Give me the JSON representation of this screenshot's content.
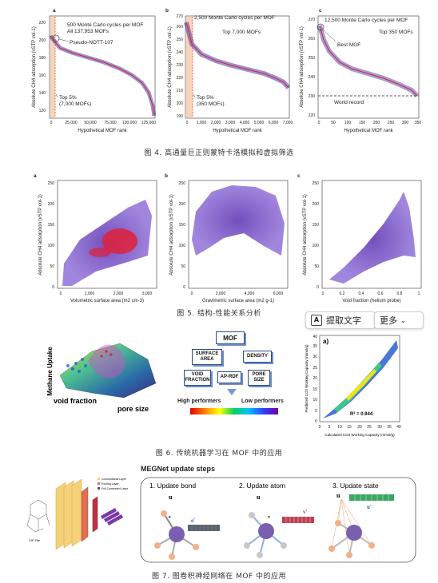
{
  "fig4": {
    "caption": "图 4. 高通量巨正则蒙特卡洛模拟和虚拟筛选",
    "panels": [
      {
        "letter": "a",
        "note_line1": "500 Monte Carlo cycles per MOF",
        "note_line2": "All 137,953 MOFs",
        "callout": "Pseudo-NOTT-107",
        "top_label_line1": "Top 5%",
        "top_label_line2": "(7,000 MOFs)",
        "xlabel": "Hypothetical MOF rank",
        "xticks": [
          "0",
          "25,000",
          "50,000",
          "75,000",
          "100,000",
          "125,000"
        ],
        "yticks": [
          "120",
          "140",
          "160",
          "180",
          "200",
          "220"
        ]
      },
      {
        "letter": "b",
        "note_line1": "2,500 Monte Carlo cycles per MOF",
        "note_line2": "Top 7,000 MOFs",
        "top_label_line1": "Top 5%",
        "top_label_line2": "(350 MOFs)",
        "xlabel": "Hypothetical MOF rank",
        "xticks": [
          "0",
          "1,000",
          "2,000",
          "3,000",
          "4,000",
          "5,000",
          "6,000",
          "7,000"
        ],
        "yticks": [
          "190",
          "200",
          "210",
          "220",
          "230",
          "240",
          "250",
          "260",
          "270"
        ]
      },
      {
        "letter": "c",
        "note_line1": "12,500 Monte Carlo cycles per MOF",
        "note_line2": "Top 350 MOFs",
        "callout": "Best MOF",
        "record_label": "World record",
        "xlabel": "Hypothetical MOF rank",
        "xticks": [
          "0",
          "50",
          "100",
          "150",
          "200",
          "250",
          "300",
          "350"
        ],
        "yticks": [
          "220",
          "230",
          "240",
          "250",
          "260",
          "270"
        ]
      }
    ],
    "ylabel": "Absolute CH4 adsorption (vSTP vol-1)"
  },
  "fig5": {
    "caption": "图 5. 结构-性能关系分析",
    "panels": [
      {
        "letter": "a",
        "xlabel": "Volumetric surface area (m2 cm-3)",
        "xticks": [
          "0",
          "1,000",
          "2,000",
          "3,000"
        ],
        "yticks": [
          "0",
          "50",
          "100",
          "150",
          "200",
          "250"
        ]
      },
      {
        "letter": "b",
        "xlabel": "Gravimetric surface area (m2 g-1)",
        "xticks": [
          "0",
          "2,000",
          "4,000",
          "6,000"
        ],
        "yticks": [
          "0",
          "50",
          "100",
          "150",
          "200",
          "250"
        ]
      },
      {
        "letter": "c",
        "xlabel": "Void fraction (helium probe)",
        "xticks": [
          "0",
          "0.2",
          "0.4",
          "0.6",
          "0.8",
          "1"
        ],
        "yticks": [
          "0",
          "50",
          "100",
          "150",
          "200",
          "250"
        ]
      }
    ],
    "ylabel": "Absolute CH4 adsorption (vSTP vol-1)"
  },
  "toolbar": {
    "extract_text": "提取文字",
    "more": "更多"
  },
  "fig6": {
    "caption": "图 6. 传统机器学习在 MOF 中的应用",
    "surface": {
      "zlabel": "Methane Uptake",
      "xlabel": "void fraction",
      "ylabel": "pore size"
    },
    "flow": {
      "root": "MOF",
      "boxes": [
        "SURFACE AREA",
        "DENSITY",
        "VOID FRACTION",
        "AP-RDF",
        "PORE SIZE"
      ],
      "high": "High performers",
      "low": "Low performers"
    },
    "parity": {
      "letter": "a)",
      "r2": "R² = 0.944",
      "xlabel": "Calculated CO2 Working Capacity (mmol/g)",
      "ylabel": "Predicted CO2 Working Capacity (mmol/g)",
      "xticks": [
        "0",
        "5",
        "10",
        "15",
        "20",
        "25",
        "30",
        "35",
        "40"
      ],
      "yticks": [
        "0",
        "5",
        "10",
        "15",
        "20",
        "25",
        "30",
        "35",
        "40"
      ]
    }
  },
  "fig7": {
    "caption": "图 7. 图卷积神经网络在 MOF 中的应用",
    "legend": [
      "Convolutional Layer",
      "Pooling Layer",
      "Full Connected Layer"
    ],
    "cif": "CIF File",
    "title": "MEGNet update steps",
    "steps": [
      "1. Update bond",
      "2. Update atom",
      "3. Update state"
    ]
  }
}
